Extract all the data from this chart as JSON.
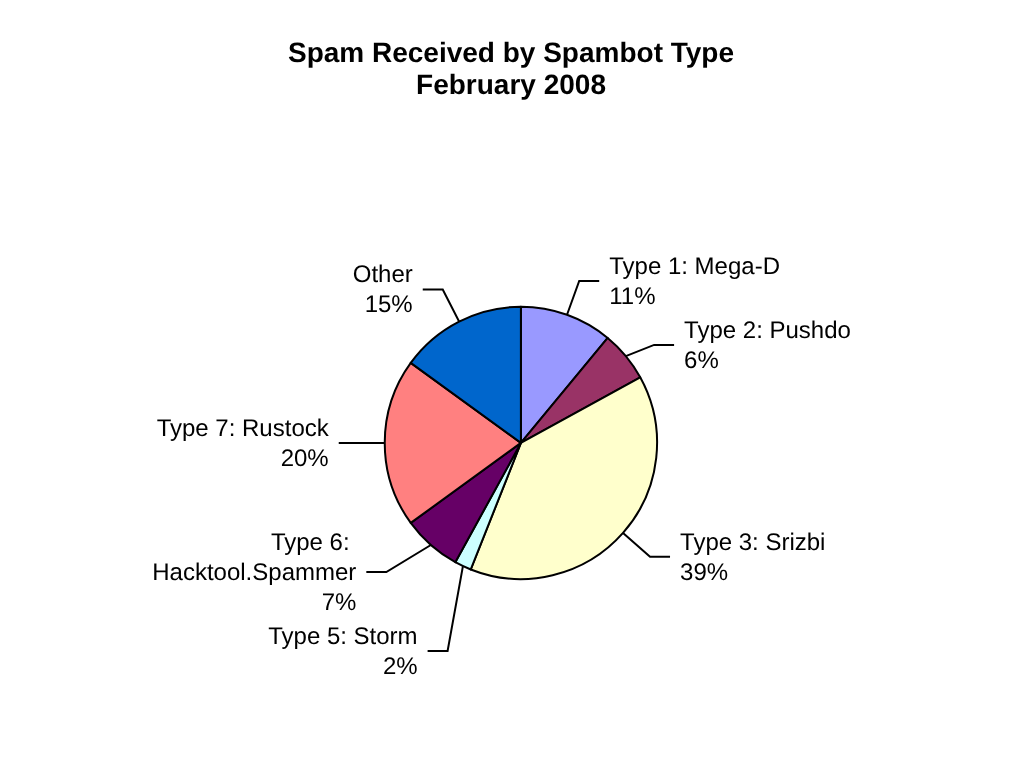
{
  "chart_data": {
    "type": "pie",
    "title": "Spam Received by Spambot Type",
    "subtitle": "February 2008",
    "categories": [
      "Type 1: Mega-D",
      "Type 2: Pushdo",
      "Type 3: Srizbi",
      "Type 5: Storm",
      "Type 6: Hacktool.Spammer",
      "Type 7: Rustock",
      "Other"
    ],
    "values": [
      11,
      6,
      39,
      2,
      7,
      20,
      15
    ],
    "colors": [
      "#9999ff",
      "#993366",
      "#ffffcc",
      "#ccffff",
      "#660066",
      "#ff8080",
      "#0066cc"
    ],
    "value_labels": [
      "11%",
      "6%",
      "39%",
      "2%",
      "7%",
      "20%",
      "15%"
    ],
    "legend": false
  }
}
